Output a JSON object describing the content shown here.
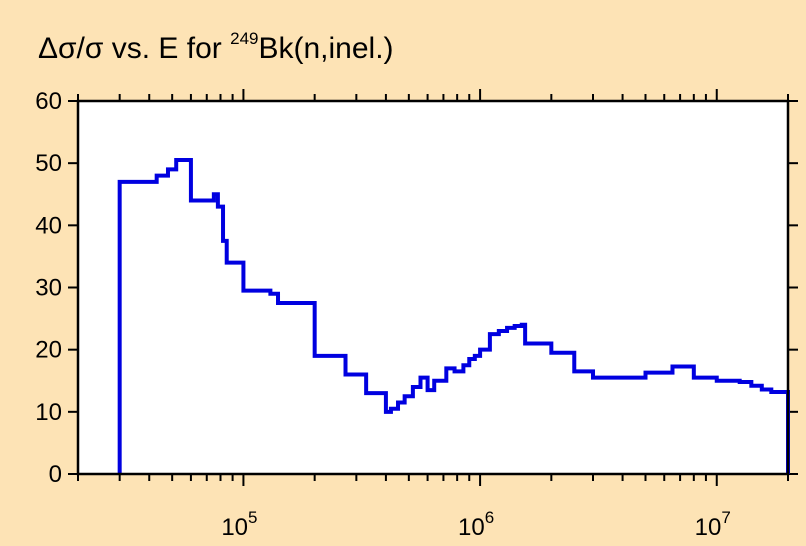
{
  "chart_data": {
    "type": "line",
    "title": {
      "prefix": "Δσ/σ vs. E for ",
      "mass_number": "249",
      "suffix": "Bk(n,inel.)"
    },
    "xlabel": "",
    "ylabel": "",
    "x_scale": "log",
    "xlim": [
      20000,
      20000000
    ],
    "ylim": [
      0,
      60
    ],
    "y_ticks": [
      "0",
      "10",
      "20",
      "30",
      "40",
      "50",
      "60"
    ],
    "x_major_ticks": [
      {
        "value": 100000,
        "base": "10",
        "exp": "5"
      },
      {
        "value": 1000000,
        "base": "10",
        "exp": "6"
      },
      {
        "value": 10000000,
        "base": "10",
        "exp": "7"
      }
    ],
    "grid": false,
    "legend": "none",
    "colors": {
      "background": "#fde3b5",
      "plot_area": "#ffffff",
      "series": "#0000e0",
      "axes": "#000000"
    },
    "series": [
      {
        "step": true,
        "x": [
          30000,
          30000,
          43000,
          43000,
          48000,
          48000,
          52000,
          52000,
          60000,
          60000,
          75000,
          75000,
          78000,
          78000,
          82000,
          82000,
          85000,
          85000,
          100000,
          100000,
          130000,
          130000,
          140000,
          140000,
          200000,
          200000,
          270000,
          270000,
          330000,
          330000,
          400000,
          400000,
          420000,
          420000,
          450000,
          450000,
          480000,
          480000,
          520000,
          520000,
          560000,
          560000,
          600000,
          600000,
          640000,
          640000,
          720000,
          720000,
          780000,
          780000,
          850000,
          850000,
          900000,
          900000,
          950000,
          950000,
          1000000,
          1000000,
          1100000,
          1100000,
          1200000,
          1200000,
          1300000,
          1300000,
          1400000,
          1400000,
          1500000,
          1500000,
          1550000,
          1550000,
          2000000,
          2000000,
          2500000,
          2500000,
          3000000,
          3000000,
          4500000,
          4500000,
          5000000,
          5000000,
          6500000,
          6500000,
          8000000,
          8000000,
          10000000,
          10000000,
          12500000,
          12500000,
          14000000,
          14000000,
          15500000,
          15500000,
          17000000,
          17000000,
          20000000,
          20000000
        ],
        "y": [
          0,
          47,
          47,
          48,
          48,
          49,
          49,
          50.5,
          50.5,
          44,
          44,
          45,
          45,
          43,
          43,
          37.5,
          37.5,
          34,
          34,
          29.5,
          29.5,
          29,
          29,
          27.5,
          27.5,
          19,
          19,
          16,
          16,
          13,
          13,
          10,
          10,
          10.5,
          10.5,
          11.5,
          11.5,
          12.5,
          12.5,
          14,
          14,
          15.5,
          15.5,
          13.5,
          13.5,
          15,
          15,
          17,
          17,
          16.5,
          16.5,
          17.5,
          17.5,
          18.5,
          18.5,
          19,
          19,
          20,
          20,
          22.5,
          22.5,
          23,
          23,
          23.5,
          23.5,
          23.8,
          23.8,
          24,
          24,
          21,
          21,
          19.5,
          19.5,
          16.5,
          16.5,
          15.5,
          15.5,
          15.5,
          15.5,
          16.3,
          16.3,
          17.3,
          17.3,
          15.5,
          15.5,
          15,
          15,
          14.8,
          14.8,
          14.2,
          14.2,
          13.6,
          13.6,
          13.2,
          13.2,
          0
        ]
      }
    ]
  }
}
